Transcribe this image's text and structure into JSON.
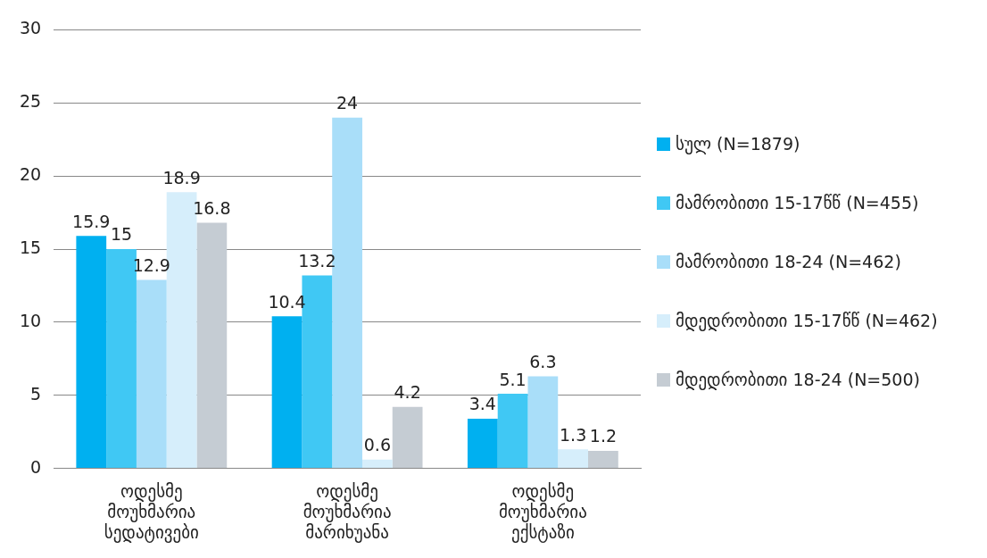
{
  "chart_data": {
    "type": "bar",
    "categories": [
      "ოდესმე მოუხმარია სედატივები",
      "ოდესმე მოუხმარია მარიხუანა",
      "ოდესმე მოუხმარია ექსტაზი"
    ],
    "series": [
      {
        "name": "სულ (N=1879)",
        "color": "#00b0f0",
        "values": [
          15.9,
          10.4,
          3.4
        ]
      },
      {
        "name": "მამრობითი 15-17წწ (N=455)",
        "color": "#40c8f4",
        "values": [
          15,
          13.2,
          5.1
        ]
      },
      {
        "name": "მამრობითი 18-24 (N=462)",
        "color": "#a9def9",
        "values": [
          12.9,
          24,
          6.3
        ]
      },
      {
        "name": "მდედრობითი 15-17წწ (N=462)",
        "color": "#d6eefb",
        "values": [
          18.9,
          0.6,
          1.3
        ]
      },
      {
        "name": "მდედრობითი 18-24 (N=500)",
        "color": "#c5ccd3",
        "values": [
          16.8,
          4.2,
          1.2
        ]
      }
    ],
    "ylim": [
      0,
      30
    ],
    "yticks": [
      0,
      5,
      10,
      15,
      20,
      25,
      30
    ],
    "grid": "y",
    "legend": "right",
    "data_labels": true
  }
}
